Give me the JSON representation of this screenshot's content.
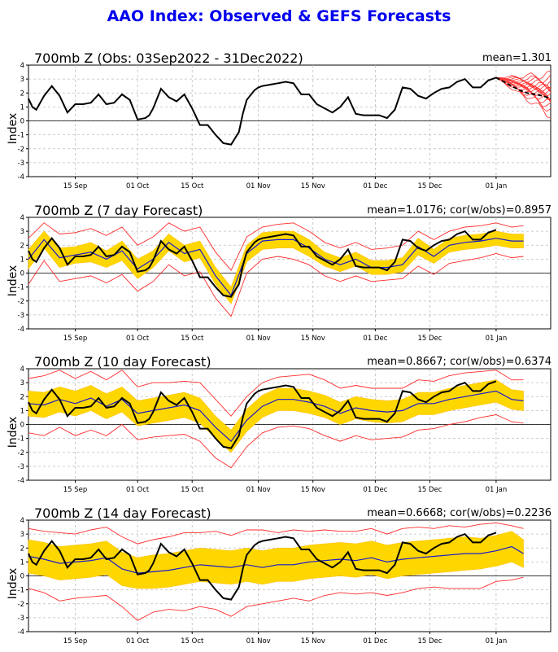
{
  "title": "AAO Index: Observed & GEFS Forecasts",
  "colors": {
    "title": "#0000ee",
    "observed": "#000000",
    "ensemble_mean": "#1a1acc",
    "spread_fill": "#ffd700",
    "spread_edge": "#ffbf00",
    "extremes": "#ff2a2a",
    "members": "#ff3333"
  },
  "chart_data": [
    {
      "type": "line",
      "title": "700mb Z (Obs: 03Sep2022 - 31Dec2022)",
      "stat": "mean=1.301",
      "ylabel": "Index",
      "ylim": [
        -4,
        4
      ],
      "yticks": [
        -4,
        -3,
        -2,
        -1,
        0,
        1,
        2,
        3,
        4
      ],
      "xticks": [
        {
          "day": 12,
          "label": "15 Sep"
        },
        {
          "day": 28,
          "label": "01 Oct"
        },
        {
          "day": 42,
          "label": "15 Oct"
        },
        {
          "day": 59,
          "label": "01 Nov"
        },
        {
          "day": 73,
          "label": "15 Nov"
        },
        {
          "day": 89,
          "label": "01 Dec"
        },
        {
          "day": 103,
          "label": "15 Dec"
        },
        {
          "day": 120,
          "label": "01 Jan"
        }
      ],
      "xlim": [
        0,
        134
      ],
      "series": [
        {
          "role": "observed",
          "x": [
            0,
            1,
            2,
            4,
            6,
            8,
            10,
            12,
            14,
            16,
            18,
            20,
            22,
            24,
            26,
            28,
            30,
            31,
            32,
            34,
            36,
            38,
            40,
            42,
            44,
            46,
            48,
            50,
            52,
            54,
            55,
            56,
            58,
            59,
            60,
            62,
            64,
            66,
            68,
            70,
            72,
            74,
            76,
            78,
            80,
            82,
            84,
            86,
            88,
            90,
            92,
            94,
            96,
            98,
            100,
            102,
            104,
            106,
            108,
            110,
            112,
            114,
            116,
            118,
            120
          ],
          "y": [
            1.6,
            1.0,
            0.8,
            1.8,
            2.5,
            1.8,
            0.6,
            1.2,
            1.2,
            1.3,
            1.9,
            1.2,
            1.3,
            1.9,
            1.5,
            0.1,
            0.2,
            0.4,
            0.9,
            2.3,
            1.7,
            1.4,
            1.9,
            0.9,
            -0.3,
            -0.3,
            -1.0,
            -1.6,
            -1.7,
            -0.8,
            0.5,
            1.5,
            2.2,
            2.4,
            2.5,
            2.6,
            2.7,
            2.8,
            2.7,
            1.9,
            1.9,
            1.2,
            0.9,
            0.6,
            1.0,
            1.7,
            0.5,
            0.4,
            0.4,
            0.4,
            0.2,
            0.8,
            2.4,
            2.3,
            1.8,
            1.6,
            2.0,
            2.3,
            2.4,
            2.8,
            3.0,
            2.4,
            2.4,
            2.9,
            3.1
          ]
        },
        {
          "role": "ensemble-mean",
          "x": [
            120,
            122,
            124,
            126,
            128,
            130,
            132,
            134
          ],
          "y": [
            3.1,
            2.8,
            2.5,
            2.2,
            2.0,
            1.9,
            1.8,
            1.6
          ]
        }
      ],
      "members": {
        "start_day": 120,
        "start_value": 3.1,
        "ends": [
          0.4,
          0.8,
          1.0,
          1.2,
          1.4,
          1.6,
          1.7,
          1.8,
          1.9,
          2.0,
          2.1,
          2.2,
          2.3,
          2.4,
          2.6,
          2.8,
          3.0,
          3.3
        ]
      }
    },
    {
      "type": "line",
      "title": "700mb Z (7 day Forecast)",
      "stat": "mean=1.0176; cor(w/obs)=0.8957",
      "ylabel": "Index",
      "ylim": [
        -4,
        4
      ],
      "yticks": [
        -4,
        -3,
        -2,
        -1,
        0,
        1,
        2,
        3,
        4
      ],
      "xticks": [
        {
          "day": 12,
          "label": "15 Sep"
        },
        {
          "day": 28,
          "label": "01 Oct"
        },
        {
          "day": 42,
          "label": "15 Oct"
        },
        {
          "day": 59,
          "label": "01 Nov"
        },
        {
          "day": 73,
          "label": "15 Nov"
        },
        {
          "day": 89,
          "label": "01 Dec"
        },
        {
          "day": 103,
          "label": "15 Dec"
        },
        {
          "day": 120,
          "label": "01 Jan"
        }
      ],
      "xlim": [
        0,
        134
      ],
      "x": [
        0,
        4,
        8,
        12,
        16,
        20,
        24,
        28,
        32,
        36,
        40,
        44,
        48,
        52,
        56,
        60,
        64,
        68,
        72,
        76,
        80,
        84,
        88,
        92,
        96,
        100,
        104,
        108,
        112,
        116,
        120,
        124,
        127
      ],
      "mean": [
        1.0,
        2.4,
        1.1,
        1.3,
        1.5,
        1.0,
        1.6,
        0.3,
        1.0,
        2.2,
        1.4,
        1.7,
        -0.2,
        -1.6,
        1.4,
        2.3,
        2.4,
        2.4,
        1.8,
        1.0,
        0.6,
        1.0,
        0.4,
        0.4,
        0.6,
        1.9,
        1.2,
        2.0,
        2.2,
        2.3,
        2.5,
        2.3,
        2.3
      ],
      "band": [
        0.7,
        0.6,
        0.7,
        0.6,
        0.7,
        0.6,
        0.7,
        0.7,
        0.6,
        0.6,
        0.6,
        0.6,
        0.6,
        0.6,
        0.6,
        0.6,
        0.6,
        0.6,
        0.6,
        0.5,
        0.5,
        0.5,
        0.5,
        0.5,
        0.5,
        0.6,
        0.5,
        0.5,
        0.5,
        0.5,
        0.5,
        0.5,
        0.5
      ],
      "hi": [
        2.5,
        3.6,
        2.8,
        2.9,
        3.2,
        2.7,
        3.3,
        2.0,
        2.6,
        3.6,
        3.0,
        3.3,
        1.5,
        0.2,
        2.6,
        3.3,
        3.5,
        3.6,
        3.0,
        2.2,
        1.8,
        2.2,
        1.7,
        1.8,
        2.0,
        3.0,
        2.4,
        3.0,
        3.3,
        3.4,
        3.6,
        3.3,
        3.4
      ],
      "lo": [
        -0.8,
        0.9,
        -0.6,
        -0.4,
        -0.2,
        -0.7,
        -0.1,
        -1.3,
        -0.6,
        0.6,
        -0.2,
        0.1,
        -1.8,
        -3.1,
        0.0,
        1.0,
        1.2,
        1.0,
        0.6,
        -0.2,
        -0.6,
        -0.2,
        -0.6,
        -0.5,
        -0.4,
        0.5,
        -0.1,
        0.7,
        0.9,
        1.1,
        1.4,
        1.1,
        1.2
      ],
      "observed": {
        "x": [
          0,
          1,
          2,
          4,
          6,
          8,
          10,
          12,
          14,
          16,
          18,
          20,
          22,
          24,
          26,
          28,
          30,
          31,
          32,
          34,
          36,
          38,
          40,
          42,
          44,
          46,
          48,
          50,
          52,
          54,
          55,
          56,
          58,
          59,
          60,
          62,
          64,
          66,
          68,
          70,
          72,
          74,
          76,
          78,
          80,
          82,
          84,
          86,
          88,
          90,
          92,
          94,
          96,
          98,
          100,
          102,
          104,
          106,
          108,
          110,
          112,
          114,
          116,
          118,
          120
        ],
        "y": [
          1.6,
          1.0,
          0.8,
          1.8,
          2.5,
          1.8,
          0.6,
          1.2,
          1.2,
          1.3,
          1.9,
          1.2,
          1.3,
          1.9,
          1.5,
          0.1,
          0.2,
          0.4,
          0.9,
          2.3,
          1.7,
          1.4,
          1.9,
          0.9,
          -0.3,
          -0.3,
          -1.0,
          -1.6,
          -1.7,
          -0.8,
          0.5,
          1.5,
          2.2,
          2.4,
          2.5,
          2.6,
          2.7,
          2.8,
          2.7,
          1.9,
          1.9,
          1.2,
          0.9,
          0.6,
          1.0,
          1.7,
          0.5,
          0.4,
          0.4,
          0.4,
          0.2,
          0.8,
          2.4,
          2.3,
          1.8,
          1.6,
          2.0,
          2.3,
          2.4,
          2.8,
          3.0,
          2.4,
          2.4,
          2.9,
          3.1
        ]
      }
    },
    {
      "type": "line",
      "title": "700mb Z (10 day Forecast)",
      "stat": "mean=0.8667; cor(w/obs)=0.6374",
      "ylabel": "Index",
      "ylim": [
        -4,
        4
      ],
      "yticks": [
        -4,
        -3,
        -2,
        -1,
        0,
        1,
        2,
        3,
        4
      ],
      "xticks": [
        {
          "day": 12,
          "label": "15 Sep"
        },
        {
          "day": 28,
          "label": "01 Oct"
        },
        {
          "day": 42,
          "label": "15 Oct"
        },
        {
          "day": 59,
          "label": "01 Nov"
        },
        {
          "day": 73,
          "label": "15 Nov"
        },
        {
          "day": 89,
          "label": "01 Dec"
        },
        {
          "day": 103,
          "label": "15 Dec"
        },
        {
          "day": 120,
          "label": "01 Jan"
        }
      ],
      "xlim": [
        0,
        134
      ],
      "x": [
        0,
        4,
        8,
        12,
        16,
        20,
        24,
        28,
        32,
        36,
        40,
        44,
        48,
        52,
        56,
        60,
        64,
        68,
        72,
        76,
        80,
        84,
        88,
        92,
        96,
        100,
        104,
        108,
        112,
        116,
        120,
        124,
        127
      ],
      "mean": [
        1.5,
        1.4,
        1.8,
        1.5,
        1.9,
        1.3,
        1.8,
        0.8,
        1.0,
        1.2,
        1.4,
        1.0,
        -0.2,
        -1.2,
        0.3,
        1.3,
        1.8,
        1.8,
        1.6,
        1.3,
        0.8,
        1.2,
        1.0,
        0.9,
        1.0,
        1.5,
        1.5,
        1.8,
        2.0,
        2.2,
        2.4,
        1.8,
        1.7
      ],
      "band": [
        0.9,
        0.9,
        0.9,
        0.9,
        0.9,
        0.9,
        0.9,
        0.9,
        0.9,
        0.9,
        0.9,
        0.9,
        0.8,
        0.8,
        0.8,
        0.8,
        0.8,
        0.8,
        0.8,
        0.8,
        0.8,
        0.8,
        0.8,
        0.8,
        0.8,
        0.8,
        0.8,
        0.8,
        0.8,
        0.8,
        0.8,
        0.7,
        0.7
      ],
      "hi": [
        3.3,
        3.5,
        3.9,
        3.3,
        3.8,
        3.2,
        3.9,
        2.7,
        3.0,
        3.0,
        3.1,
        3.0,
        1.8,
        0.6,
        2.0,
        3.0,
        3.4,
        3.5,
        3.6,
        3.2,
        2.6,
        2.8,
        2.6,
        2.6,
        2.6,
        3.2,
        3.1,
        3.5,
        3.7,
        3.8,
        3.9,
        3.2,
        3.2
      ],
      "lo": [
        -0.6,
        -0.8,
        -0.2,
        -0.8,
        -0.4,
        -0.8,
        0.0,
        -1.1,
        -0.9,
        -0.8,
        -0.7,
        -1.2,
        -2.4,
        -3.1,
        -1.6,
        -0.6,
        -0.2,
        -0.1,
        -0.3,
        -0.8,
        -1.2,
        -0.8,
        -1.1,
        -1.0,
        -0.9,
        -0.4,
        -0.3,
        0.0,
        0.2,
        0.5,
        0.7,
        0.2,
        0.1
      ],
      "observed": {
        "x": [
          0,
          1,
          2,
          4,
          6,
          8,
          10,
          12,
          14,
          16,
          18,
          20,
          22,
          24,
          26,
          28,
          30,
          31,
          32,
          34,
          36,
          38,
          40,
          42,
          44,
          46,
          48,
          50,
          52,
          54,
          55,
          56,
          58,
          59,
          60,
          62,
          64,
          66,
          68,
          70,
          72,
          74,
          76,
          78,
          80,
          82,
          84,
          86,
          88,
          90,
          92,
          94,
          96,
          98,
          100,
          102,
          104,
          106,
          108,
          110,
          112,
          114,
          116,
          118,
          120
        ],
        "y": [
          1.6,
          1.0,
          0.8,
          1.8,
          2.5,
          1.8,
          0.6,
          1.2,
          1.2,
          1.3,
          1.9,
          1.2,
          1.3,
          1.9,
          1.5,
          0.1,
          0.2,
          0.4,
          0.9,
          2.3,
          1.7,
          1.4,
          1.9,
          0.9,
          -0.3,
          -0.3,
          -1.0,
          -1.6,
          -1.7,
          -0.8,
          0.5,
          1.5,
          2.2,
          2.4,
          2.5,
          2.6,
          2.7,
          2.8,
          2.7,
          1.9,
          1.9,
          1.2,
          0.9,
          0.6,
          1.0,
          1.7,
          0.5,
          0.4,
          0.4,
          0.4,
          0.2,
          0.8,
          2.4,
          2.3,
          1.8,
          1.6,
          2.0,
          2.3,
          2.4,
          2.8,
          3.0,
          2.4,
          2.4,
          2.9,
          3.1
        ]
      }
    },
    {
      "type": "line",
      "title": "700mb Z (14 day Forecast)",
      "stat": "mean=0.6668; cor(w/obs)=0.2236",
      "ylabel": "Index",
      "ylim": [
        -4,
        4
      ],
      "yticks": [
        -4,
        -3,
        -2,
        -1,
        0,
        1,
        2,
        3,
        4
      ],
      "xticks": [
        {
          "day": 12,
          "label": "15 Sep"
        },
        {
          "day": 28,
          "label": "01 Oct"
        },
        {
          "day": 42,
          "label": "15 Oct"
        },
        {
          "day": 59,
          "label": "01 Nov"
        },
        {
          "day": 73,
          "label": "15 Nov"
        },
        {
          "day": 89,
          "label": "01 Dec"
        },
        {
          "day": 103,
          "label": "15 Dec"
        },
        {
          "day": 120,
          "label": "01 Jan"
        }
      ],
      "xlim": [
        0,
        134
      ],
      "x": [
        0,
        4,
        8,
        12,
        16,
        20,
        24,
        28,
        32,
        36,
        40,
        44,
        48,
        52,
        56,
        60,
        64,
        68,
        72,
        76,
        80,
        84,
        88,
        92,
        96,
        100,
        104,
        108,
        112,
        116,
        120,
        124,
        127
      ],
      "mean": [
        1.4,
        1.2,
        0.9,
        1.0,
        1.1,
        1.3,
        0.5,
        0.2,
        0.3,
        0.4,
        0.6,
        0.8,
        0.7,
        0.6,
        0.8,
        0.6,
        0.8,
        0.8,
        1.0,
        1.1,
        1.2,
        1.1,
        1.3,
        1.0,
        1.2,
        1.3,
        1.4,
        1.5,
        1.6,
        1.6,
        1.8,
        2.1,
        1.6
      ],
      "band": [
        1.2,
        1.2,
        1.2,
        1.2,
        1.2,
        1.2,
        1.2,
        1.1,
        1.2,
        1.2,
        1.2,
        1.2,
        1.2,
        1.2,
        1.2,
        1.2,
        1.2,
        1.2,
        1.2,
        1.2,
        1.2,
        1.2,
        1.2,
        1.2,
        1.2,
        1.2,
        1.2,
        1.2,
        1.2,
        1.1,
        1.1,
        1.1,
        1.0
      ],
      "hi": [
        3.4,
        3.2,
        3.1,
        3.0,
        3.3,
        3.5,
        2.8,
        2.3,
        2.6,
        2.8,
        3.1,
        3.1,
        3.2,
        2.9,
        3.3,
        3.3,
        3.1,
        3.3,
        3.2,
        3.3,
        3.2,
        3.2,
        3.4,
        3.0,
        3.4,
        3.5,
        3.4,
        3.6,
        3.5,
        3.7,
        3.8,
        3.6,
        3.4
      ],
      "lo": [
        -0.9,
        -1.2,
        -1.8,
        -1.6,
        -1.5,
        -1.4,
        -2.2,
        -3.2,
        -2.6,
        -2.4,
        -2.5,
        -2.2,
        -2.4,
        -2.9,
        -2.2,
        -2.0,
        -1.8,
        -1.6,
        -1.8,
        -1.4,
        -1.2,
        -1.3,
        -1.2,
        -1.4,
        -1.2,
        -0.9,
        -0.8,
        -0.9,
        -0.9,
        -0.9,
        -0.4,
        -0.3,
        -0.1
      ],
      "observed": {
        "x": [
          0,
          1,
          2,
          4,
          6,
          8,
          10,
          12,
          14,
          16,
          18,
          20,
          22,
          24,
          26,
          28,
          30,
          31,
          32,
          34,
          36,
          38,
          40,
          42,
          44,
          46,
          48,
          50,
          52,
          54,
          55,
          56,
          58,
          59,
          60,
          62,
          64,
          66,
          68,
          70,
          72,
          74,
          76,
          78,
          80,
          82,
          84,
          86,
          88,
          90,
          92,
          94,
          96,
          98,
          100,
          102,
          104,
          106,
          108,
          110,
          112,
          114,
          116,
          118,
          120
        ],
        "y": [
          1.6,
          1.0,
          0.8,
          1.8,
          2.5,
          1.8,
          0.6,
          1.2,
          1.2,
          1.3,
          1.9,
          1.2,
          1.3,
          1.9,
          1.5,
          0.1,
          0.2,
          0.4,
          0.9,
          2.3,
          1.7,
          1.4,
          1.9,
          0.9,
          -0.3,
          -0.3,
          -1.0,
          -1.6,
          -1.7,
          -0.8,
          0.5,
          1.5,
          2.2,
          2.4,
          2.5,
          2.6,
          2.7,
          2.8,
          2.7,
          1.9,
          1.9,
          1.2,
          0.9,
          0.6,
          1.0,
          1.7,
          0.5,
          0.4,
          0.4,
          0.4,
          0.2,
          0.8,
          2.4,
          2.3,
          1.8,
          1.6,
          2.0,
          2.3,
          2.4,
          2.8,
          3.0,
          2.4,
          2.4,
          2.9,
          3.1
        ]
      }
    }
  ]
}
